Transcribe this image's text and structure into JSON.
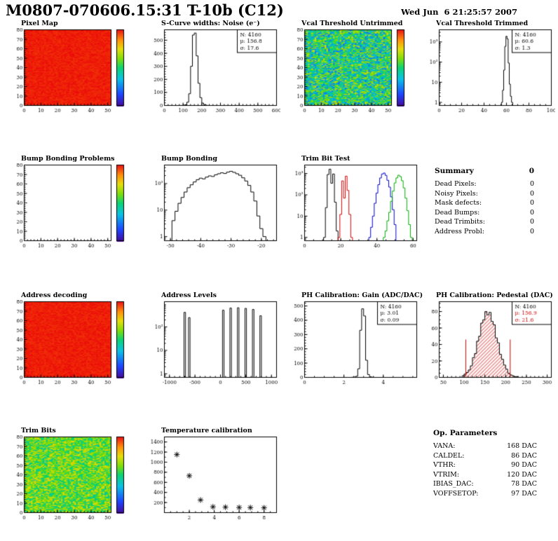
{
  "header": {
    "title": "M0807-070606.15:31 T-10b (C12)",
    "date": "Wed Jun  6 21:25:57 2007"
  },
  "summary": {
    "title": "Summary",
    "value": "0",
    "rows": [
      {
        "label": "Dead Pixels:",
        "value": "0"
      },
      {
        "label": "Noisy Pixels:",
        "value": "0"
      },
      {
        "label": "Mask defects:",
        "value": "0"
      },
      {
        "label": "Dead Bumps:",
        "value": "0"
      },
      {
        "label": "Dead Trimbits:",
        "value": "0"
      },
      {
        "label": "Address Probl:",
        "value": "0"
      }
    ]
  },
  "op_parameters": {
    "title": "Op. Parameters",
    "rows": [
      {
        "label": "VANA:",
        "value": "168 DAC"
      },
      {
        "label": "CALDEL:",
        "value": "86 DAC"
      },
      {
        "label": "VTHR:",
        "value": "90 DAC"
      },
      {
        "label": "VTRIM:",
        "value": "120 DAC"
      },
      {
        "label": "IBIAS_DAC:",
        "value": "78 DAC"
      },
      {
        "label": "VOFFSETOP:",
        "value": "97 DAC"
      }
    ]
  },
  "chart_data": [
    {
      "id": "pixel_map",
      "title": "Pixel Map",
      "type": "heatmap",
      "colorbar": true,
      "seed": 5,
      "base": 0.98,
      "noise": 0.02,
      "x": {
        "min": 0,
        "max": 52,
        "ticks": [
          0,
          10,
          20,
          30,
          40,
          50
        ],
        "minor": 2
      },
      "y": {
        "min": 0,
        "max": 80,
        "ticks": [
          0,
          10,
          20,
          30,
          40,
          50,
          60,
          70,
          80
        ],
        "minor": 2
      }
    },
    {
      "id": "scurve_noise",
      "title": "S-Curve widths: Noise (e⁻)",
      "type": "hist",
      "x": {
        "min": 0,
        "max": 600,
        "ticks": [
          0,
          100,
          200,
          300,
          400,
          500,
          600
        ],
        "minor": 20
      },
      "y": {
        "min": 0,
        "max": 580,
        "ticks": [
          0,
          100,
          200,
          300,
          400,
          500
        ],
        "minor": 20
      },
      "series": [
        {
          "color": "#000000",
          "x": [
            105,
            115,
            125,
            135,
            145,
            155,
            165,
            175,
            185,
            195,
            205,
            215,
            225
          ],
          "y": [
            2,
            6,
            25,
            90,
            300,
            540,
            555,
            380,
            170,
            60,
            18,
            6,
            2
          ]
        }
      ],
      "stats": [
        {
          "text": "N: 4160",
          "color": "#000000"
        },
        {
          "text": "μ: 156.8",
          "color": "#000000"
        },
        {
          "text": "σ: 17.6",
          "color": "#000000"
        }
      ]
    },
    {
      "id": "vcal_untrimmed",
      "title": "Vcal Threshold Untrimmed",
      "type": "heatmap",
      "colorbar": true,
      "seed": 11,
      "base": 0.48,
      "noise": 0.26,
      "x": {
        "min": 0,
        "max": 52,
        "ticks": [
          0,
          10,
          20,
          30,
          40,
          50
        ],
        "minor": 2
      },
      "y": {
        "min": 0,
        "max": 80,
        "ticks": [
          0,
          10,
          20,
          30,
          40,
          50,
          60,
          70,
          80
        ],
        "minor": 2
      }
    },
    {
      "id": "vcal_trimmed",
      "title": "Vcal Threshold Trimmed",
      "type": "hist",
      "x": {
        "min": 0,
        "max": 100,
        "ticks": [
          0,
          20,
          40,
          60,
          80,
          100
        ],
        "minor": 5
      },
      "y": {
        "log": true,
        "min": 0.7,
        "max": 4000,
        "labels": [
          "1",
          "10",
          "10²",
          "10³"
        ]
      },
      "series": [
        {
          "color": "#000000",
          "x": [
            55,
            56,
            57,
            58,
            59,
            60,
            61,
            62,
            63,
            64,
            65,
            66
          ],
          "y": [
            0,
            1,
            4,
            40,
            600,
            1900,
            1400,
            90,
            8,
            2,
            1,
            0
          ]
        }
      ],
      "stats": [
        {
          "text": "N: 4160",
          "color": "#000000"
        },
        {
          "text": "μ: 60.6",
          "color": "#000000"
        },
        {
          "text": "σ: 1.3",
          "color": "#000000"
        }
      ]
    },
    {
      "id": "bump_problems",
      "title": "Bump Bonding Problems",
      "type": "frame",
      "colorbar": true,
      "x": {
        "min": 0,
        "max": 52,
        "ticks": [
          0,
          10,
          20,
          30,
          40,
          50
        ],
        "minor": 2
      },
      "y": {
        "min": 0,
        "max": 80,
        "ticks": [
          0,
          10,
          20,
          30,
          40,
          50,
          60,
          70,
          80
        ],
        "minor": 2
      }
    },
    {
      "id": "bump_bonding",
      "title": "Bump Bonding",
      "type": "hist",
      "x": {
        "min": -52,
        "max": -15,
        "ticks": [
          -50,
          -40,
          -30,
          -20
        ],
        "minor": 2
      },
      "y": {
        "log": true,
        "min": 0.7,
        "max": 500,
        "labels": [
          "1",
          "10",
          "10²"
        ]
      },
      "series": [
        {
          "color": "#000000",
          "x": [
            -49,
            -48,
            -47,
            -46,
            -45,
            -44,
            -43,
            -42,
            -41,
            -40,
            -39,
            -38,
            -37,
            -36,
            -35,
            -34,
            -33,
            -32,
            -31,
            -30,
            -29,
            -28,
            -27,
            -26,
            -25,
            -24,
            -23,
            -22,
            -21,
            -20,
            -19
          ],
          "y": [
            4,
            9,
            18,
            30,
            48,
            70,
            90,
            115,
            140,
            160,
            150,
            175,
            195,
            185,
            215,
            235,
            255,
            240,
            270,
            290,
            265,
            235,
            205,
            165,
            125,
            85,
            48,
            22,
            6,
            2,
            1
          ]
        }
      ]
    },
    {
      "id": "trimbit_test",
      "title": "Trim Bit Test",
      "type": "hist",
      "x": {
        "min": 0,
        "max": 62,
        "ticks": [
          0,
          20,
          40,
          60
        ],
        "minor": 5
      },
      "y": {
        "log": true,
        "min": 0.7,
        "max": 2500,
        "labels": [
          "1",
          "10",
          "10²",
          "10³"
        ]
      },
      "series": [
        {
          "color": "#000000",
          "x": [
            11,
            12,
            13,
            14,
            15,
            16,
            17,
            18
          ],
          "y": [
            1,
            25,
            900,
            1600,
            350,
            950,
            45,
            2
          ]
        },
        {
          "color": "#cc0000",
          "x": [
            19,
            20,
            21,
            22,
            23,
            24,
            25,
            26
          ],
          "y": [
            1,
            12,
            450,
            70,
            750,
            160,
            12,
            1
          ]
        },
        {
          "color": "#0000cc",
          "x": [
            36,
            37,
            38,
            39,
            40,
            41,
            42,
            43,
            44,
            45,
            46,
            47,
            48,
            49,
            50
          ],
          "y": [
            1,
            3,
            10,
            40,
            120,
            300,
            620,
            950,
            1050,
            820,
            480,
            230,
            80,
            20,
            4
          ]
        },
        {
          "color": "#00aa00",
          "x": [
            44,
            45,
            46,
            47,
            48,
            49,
            50,
            51,
            52,
            53,
            54,
            55,
            56,
            57,
            58,
            59
          ],
          "y": [
            1,
            2,
            6,
            15,
            50,
            150,
            360,
            620,
            830,
            720,
            460,
            210,
            70,
            18,
            4,
            1
          ]
        }
      ]
    },
    {
      "id": "address_decoding",
      "title": "Address decoding",
      "type": "heatmap",
      "colorbar": true,
      "seed": 17,
      "base": 0.98,
      "noise": 0.02,
      "x": {
        "min": 0,
        "max": 52,
        "ticks": [
          0,
          10,
          20,
          30,
          40,
          50
        ],
        "minor": 2
      },
      "y": {
        "min": 0,
        "max": 80,
        "ticks": [
          0,
          10,
          20,
          30,
          40,
          50,
          60,
          70,
          80
        ],
        "minor": 2
      }
    },
    {
      "id": "address_levels",
      "title": "Address Levels",
      "type": "spikes",
      "x": {
        "min": -1100,
        "max": 1100,
        "ticks": [
          -1000,
          -500,
          0,
          500,
          1000
        ],
        "minor": 100
      },
      "y": {
        "log": true,
        "min": 0.7,
        "max": 1200,
        "labels": [
          "1",
          "10",
          "10²"
        ]
      },
      "spike_w": 30,
      "spikes": [
        [
          -700,
          420
        ],
        [
          -612,
          250
        ],
        [
          55,
          520
        ],
        [
          200,
          640
        ],
        [
          348,
          660
        ],
        [
          495,
          620
        ],
        [
          642,
          560
        ],
        [
          788,
          300
        ]
      ]
    },
    {
      "id": "ph_gain",
      "title": "PH Calibration: Gain (ADC/DAC)",
      "type": "hist",
      "x": {
        "min": 0,
        "max": 5.7,
        "ticks": [
          0,
          2,
          4
        ],
        "minor": 0.5
      },
      "y": {
        "min": 0,
        "max": 530,
        "ticks": [
          0,
          100,
          200,
          300,
          400,
          500
        ],
        "minor": 20
      },
      "series": [
        {
          "color": "#000000",
          "x": [
            2.45,
            2.55,
            2.65,
            2.75,
            2.85,
            2.95,
            3.05,
            3.15,
            3.25,
            3.35,
            3.45
          ],
          "y": [
            1,
            2,
            8,
            60,
            330,
            480,
            430,
            120,
            20,
            4,
            1
          ]
        }
      ],
      "stats": [
        {
          "text": "N: 4160",
          "color": "#000000"
        },
        {
          "text": "μ: 3.01",
          "color": "#000000"
        },
        {
          "text": "σ: 0.09",
          "color": "#000000"
        }
      ]
    },
    {
      "id": "ph_pedestal",
      "title": "PH Calibration: Pedestal (DAC)",
      "type": "hist",
      "x": {
        "min": 40,
        "max": 310,
        "ticks": [
          50,
          100,
          150,
          200,
          250,
          300
        ],
        "minor": 10
      },
      "y": {
        "min": 0,
        "max": 92,
        "ticks": [
          0,
          20,
          40,
          60,
          80
        ],
        "minor": 5
      },
      "series": [
        {
          "color": "#000000",
          "fill": "#cc0000",
          "x": [
            97.5,
            102.5,
            107.5,
            112.5,
            117.5,
            122.5,
            127.5,
            132.5,
            137.5,
            142.5,
            147.5,
            152.5,
            157.5,
            162.5,
            167.5,
            172.5,
            177.5,
            182.5,
            187.5,
            192.5,
            197.5,
            202.5,
            207.5,
            212.5,
            217.5,
            222.5,
            227.5
          ],
          "y": [
            2,
            4,
            6,
            9,
            14,
            24,
            29,
            44,
            50,
            66,
            70,
            80,
            76,
            79,
            68,
            64,
            48,
            42,
            28,
            22,
            15,
            10,
            5,
            3,
            2,
            1,
            1
          ]
        }
      ],
      "vlines": [
        {
          "x": 104,
          "h": 46,
          "color": "#cc0000"
        },
        {
          "x": 211,
          "h": 46,
          "color": "#cc0000"
        }
      ],
      "stats": [
        {
          "text": "N: 4160",
          "color": "#000000"
        },
        {
          "text": "μ: 156.9",
          "color": "#cc0000"
        },
        {
          "text": "σ: 21.6",
          "color": "#cc0000"
        }
      ]
    },
    {
      "id": "trim_bits",
      "title": "Trim Bits",
      "type": "heatmap",
      "colorbar": true,
      "seed": 23,
      "base": 0.6,
      "noise": 0.18,
      "x": {
        "min": 0,
        "max": 52,
        "ticks": [
          0,
          10,
          20,
          30,
          40,
          50
        ],
        "minor": 2
      },
      "y": {
        "min": 0,
        "max": 80,
        "ticks": [
          0,
          10,
          20,
          30,
          40,
          50,
          60,
          70,
          80
        ],
        "minor": 2
      }
    },
    {
      "id": "temp_cal",
      "title": "Temperature calibration",
      "type": "scatter",
      "x": {
        "min": 0,
        "max": 9,
        "ticks": [
          2,
          4,
          6,
          8
        ],
        "minor": 0.5
      },
      "y": {
        "min": 0,
        "max": 1500,
        "ticks": [
          200,
          400,
          600,
          800,
          1000,
          1200,
          1400
        ],
        "minor": 100
      },
      "points": [
        [
          1,
          1150
        ],
        [
          2,
          730
        ],
        [
          2.9,
          250
        ],
        [
          3.9,
          115
        ],
        [
          4.9,
          108
        ],
        [
          6,
          102
        ],
        [
          6.9,
          100
        ],
        [
          8,
          95
        ]
      ]
    }
  ]
}
